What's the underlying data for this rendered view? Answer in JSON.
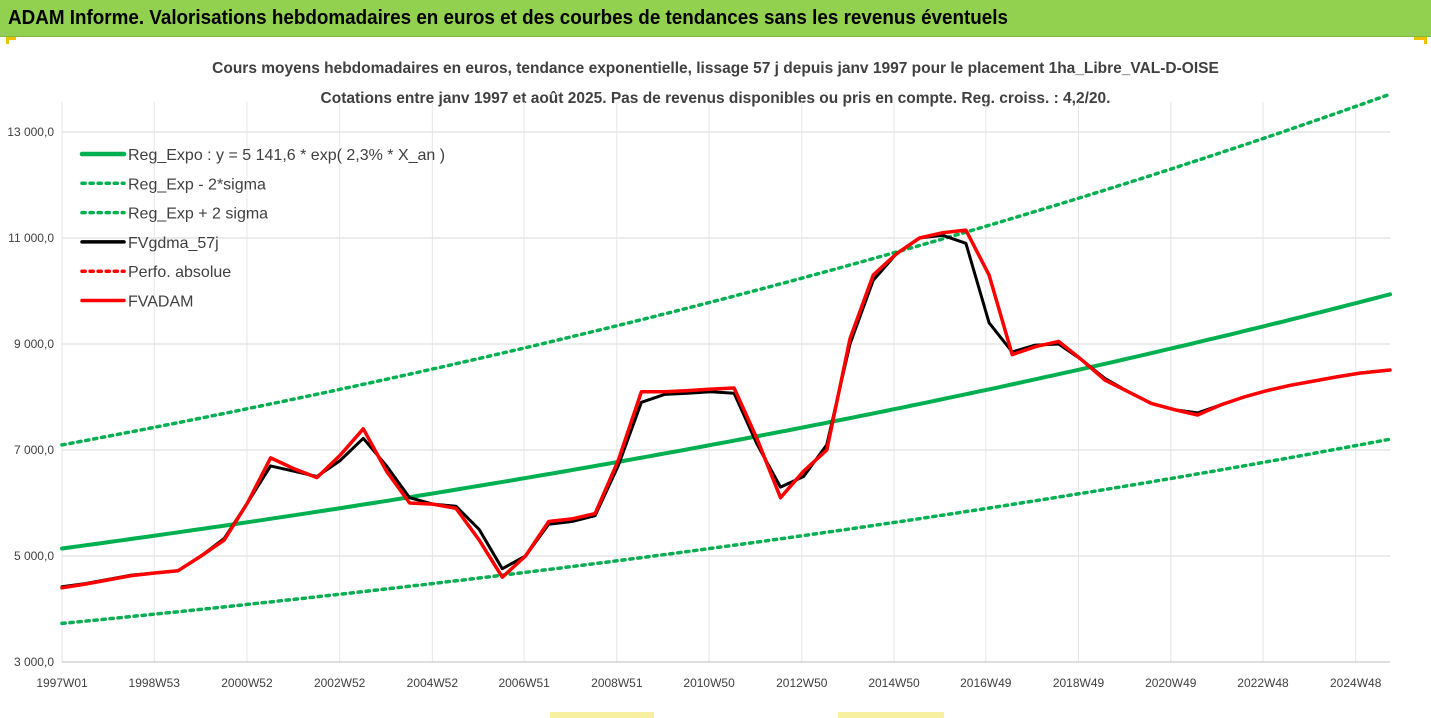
{
  "banner": {
    "title": "ADAM Informe. Valorisations hebdomadaires en euros et des courbes de tendances sans les revenus éventuels",
    "color": "#92d050"
  },
  "chart_data": {
    "type": "line",
    "title": "Cours moyens hebdomadaires en euros, tendance exponentielle, lissage 57 j depuis janv 1997 pour le placement 1ha_Libre_VAL-D-OISE",
    "subtitle": "Cotations entre janv 1997 et août 2025. Pas de revenus disponibles ou pris en compte. Reg. croiss. : 4,2/20.",
    "xlabel": "",
    "ylabel": "",
    "ylim": [
      3000,
      13000
    ],
    "xlim": [
      1997.0,
      2025.65
    ],
    "y_ticks": [
      3000,
      5000,
      7000,
      9000,
      11000,
      13000
    ],
    "y_tick_labels": [
      "3 000,0",
      "5 000,0",
      "7 000,0",
      "9 000,0",
      "11 000,0",
      "13 000,0"
    ],
    "x_ticks": [
      1997.0,
      1998.99,
      2000.99,
      2002.99,
      2004.99,
      2006.97,
      2008.97,
      2010.96,
      2012.96,
      2014.95,
      2016.93,
      2018.93,
      2020.92,
      2022.91,
      2024.91
    ],
    "x_tick_labels": [
      "1997W01",
      "1998W53",
      "2000W52",
      "2002W52",
      "2004W52",
      "2006W51",
      "2008W51",
      "2010W50",
      "2012W50",
      "2014W50",
      "2016W49",
      "2018W49",
      "2020W49",
      "2022W48",
      "2024W48"
    ],
    "grid": true,
    "legend_position": "top-left",
    "series": [
      {
        "name": "Reg_Expo : y = 5 141,6 * exp( 2,3% *  X_an )",
        "kind": "exp",
        "a": 5141.6,
        "rate": 0.023,
        "factor": 1,
        "color": "#00b050",
        "style": "solid"
      },
      {
        "name": "Reg_Exp - 2*sigma",
        "kind": "exp",
        "a": 5141.6,
        "rate": 0.023,
        "factor": 0.725,
        "color": "#00b050",
        "style": "dotted"
      },
      {
        "name": "Reg_Exp + 2 sigma",
        "kind": "exp",
        "a": 5141.6,
        "rate": 0.023,
        "factor": 1.38,
        "color": "#00b050",
        "style": "dotted"
      },
      {
        "name": "FVgdma_57j",
        "kind": "points",
        "color": "#000000",
        "style": "solid",
        "x": [
          1997.0,
          1997.5,
          1998.0,
          1998.5,
          1999.0,
          1999.5,
          2000.0,
          2000.5,
          2001.0,
          2001.5,
          2002.0,
          2002.5,
          2003.0,
          2003.5,
          2004.0,
          2004.5,
          2005.0,
          2005.5,
          2006.0,
          2006.5,
          2007.0,
          2007.5,
          2008.0,
          2008.5,
          2009.0,
          2009.5,
          2010.0,
          2010.5,
          2011.0,
          2011.5,
          2012.0,
          2012.5,
          2013.0,
          2013.5,
          2014.0,
          2014.5,
          2015.0,
          2015.5,
          2016.0,
          2016.5,
          2017.0,
          2017.5,
          2018.0,
          2018.5,
          2019.0,
          2019.5,
          2020.0,
          2020.5,
          2021.0,
          2021.5,
          2022.0,
          2022.5,
          2023.0,
          2023.5,
          2024.0,
          2024.5,
          2025.0,
          2025.65
        ],
        "y": [
          4420,
          4480,
          4560,
          4640,
          4680,
          4720,
          5000,
          5330,
          6000,
          6700,
          6600,
          6500,
          6800,
          7220,
          6700,
          6100,
          5980,
          5940,
          5500,
          4760,
          5000,
          5600,
          5650,
          5760,
          6700,
          7900,
          8050,
          8070,
          8100,
          8070,
          7100,
          6300,
          6500,
          7100,
          9000,
          10200,
          10700,
          11000,
          11050,
          10900,
          9400,
          8850,
          8980,
          9000,
          8700,
          8350,
          8100,
          7880,
          7760,
          7700,
          7850,
          8000,
          8120,
          8220,
          8300,
          8380,
          8450,
          8510
        ]
      },
      {
        "name": "Perfo. absolue",
        "kind": "points",
        "color": "#ff0000",
        "style": "dotted",
        "x": [],
        "y": []
      },
      {
        "name": "FVADAM",
        "kind": "points",
        "color": "#ff0000",
        "style": "solid",
        "x": [
          1997.0,
          1997.5,
          1998.0,
          1998.5,
          1999.0,
          1999.5,
          2000.0,
          2000.5,
          2001.0,
          2001.5,
          2002.0,
          2002.5,
          2003.0,
          2003.5,
          2004.0,
          2004.5,
          2005.0,
          2005.5,
          2006.0,
          2006.5,
          2007.0,
          2007.5,
          2008.0,
          2008.5,
          2009.0,
          2009.5,
          2010.0,
          2010.5,
          2011.0,
          2011.5,
          2012.0,
          2012.5,
          2013.0,
          2013.5,
          2014.0,
          2014.5,
          2015.0,
          2015.5,
          2016.0,
          2016.5,
          2017.0,
          2017.5,
          2018.0,
          2018.5,
          2019.0,
          2019.5,
          2020.0,
          2020.5,
          2021.0,
          2021.5,
          2022.0,
          2022.5,
          2023.0,
          2023.5,
          2024.0,
          2024.5,
          2025.0,
          2025.65
        ],
        "y": [
          4400,
          4470,
          4550,
          4630,
          4680,
          4720,
          5000,
          5300,
          6000,
          6850,
          6650,
          6480,
          6900,
          7400,
          6600,
          6000,
          5980,
          5900,
          5300,
          4600,
          5000,
          5650,
          5700,
          5800,
          6800,
          8100,
          8100,
          8120,
          8150,
          8170,
          7200,
          6100,
          6600,
          7000,
          9100,
          10300,
          10700,
          11000,
          11100,
          11150,
          10300,
          8800,
          8950,
          9050,
          8700,
          8320,
          8100,
          7880,
          7760,
          7660,
          7850,
          8000,
          8120,
          8220,
          8300,
          8380,
          8450,
          8510
        ]
      }
    ]
  }
}
